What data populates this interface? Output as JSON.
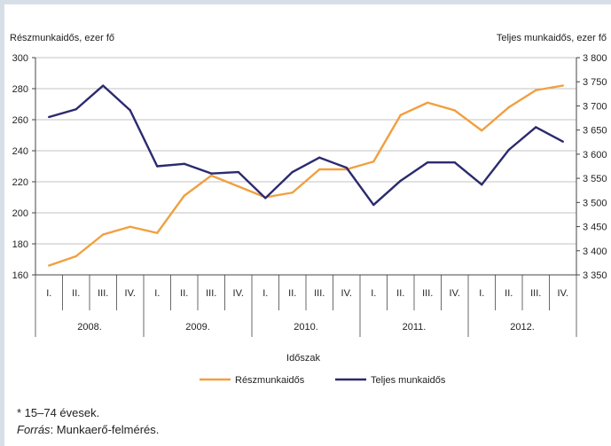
{
  "colors": {
    "series_part": "#f0a040",
    "series_full": "#2b2a6e",
    "axis": "#444444",
    "grid": "#888888",
    "page_frame": "#d6dee8"
  },
  "chart_data": {
    "type": "line",
    "x_quarters": [
      "I.",
      "II.",
      "III.",
      "IV.",
      "I.",
      "II.",
      "III.",
      "IV.",
      "I.",
      "II.",
      "III.",
      "IV.",
      "I.",
      "II.",
      "III.",
      "IV.",
      "I.",
      "II.",
      "III.",
      "IV."
    ],
    "x_years": [
      "2008.",
      "2009.",
      "2010.",
      "2011.",
      "2012."
    ],
    "xlabel": "Időszak",
    "ylabel_left": "Részmunkaidős, ezer fő",
    "ylabel_right": "Teljes munkaidős, ezer fő",
    "ylim_left": [
      160,
      300
    ],
    "ylim_right": [
      3350,
      3800
    ],
    "yticks_left": [
      "300",
      "280",
      "260",
      "240",
      "220",
      "200",
      "180",
      "160"
    ],
    "yticks_right": [
      "3 800",
      "3 750",
      "3 700",
      "3 650",
      "3 600",
      "3 550",
      "3 500",
      "3 450",
      "3 400",
      "3 350"
    ],
    "grid": "horizontal",
    "legend_position": "bottom",
    "series": [
      {
        "name": "Részmunkaidős",
        "axis": "left",
        "color": "#f0a040",
        "values": [
          166,
          172,
          186,
          191,
          187,
          211,
          224,
          217,
          210,
          213,
          228,
          228,
          233,
          263,
          271,
          266,
          253,
          268,
          279,
          282
        ]
      },
      {
        "name": "Teljes munkaidős",
        "axis": "right",
        "color": "#2b2a6e",
        "values": [
          3677,
          3693,
          3742,
          3691,
          3575,
          3580,
          3560,
          3563,
          3509,
          3563,
          3593,
          3572,
          3495,
          3545,
          3583,
          3583,
          3537,
          3609,
          3656,
          3626
        ]
      }
    ]
  },
  "footnotes": {
    "line1": "* 15–74 évesek.",
    "line2_label": "Forrás",
    "line2_text": ": Munkaerő-felmérés."
  }
}
